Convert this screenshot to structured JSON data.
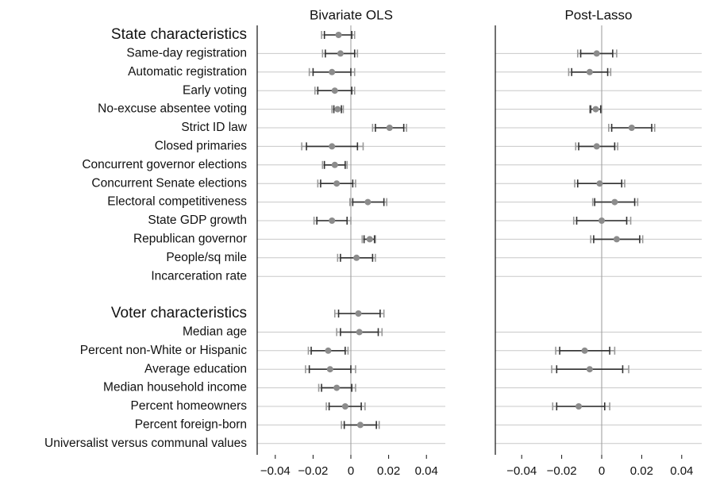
{
  "chart_data": {
    "type": "coefficient-plot",
    "panels": [
      {
        "title": "Bivariate OLS",
        "xlim": [
          -0.05,
          0.05
        ],
        "xticks": [
          -0.04,
          -0.02,
          0,
          0.02,
          0.04
        ],
        "xtick_labels": [
          "−0.04",
          "−0.02",
          "0",
          "0.02",
          "0.04"
        ],
        "estimates": [
          {
            "row": 0,
            "est": -0.0065,
            "ci90": [
              -0.014,
              0.0005
            ],
            "ci95": [
              -0.0155,
              0.002
            ]
          },
          {
            "row": 1,
            "est": -0.0055,
            "ci90": [
              -0.0135,
              0.002
            ],
            "ci95": [
              -0.015,
              0.0035
            ]
          },
          {
            "row": 2,
            "est": -0.01,
            "ci90": [
              -0.02,
              0.0
            ],
            "ci95": [
              -0.022,
              0.002
            ]
          },
          {
            "row": 3,
            "est": -0.0085,
            "ci90": [
              -0.0175,
              0.0005
            ],
            "ci95": [
              -0.019,
              0.002
            ]
          },
          {
            "row": 4,
            "est": -0.007,
            "ci90": [
              -0.009,
              -0.005
            ],
            "ci95": [
              -0.01,
              -0.004
            ]
          },
          {
            "row": 5,
            "est": 0.0205,
            "ci90": [
              0.013,
              0.028
            ],
            "ci95": [
              0.0115,
              0.0295
            ]
          },
          {
            "row": 6,
            "est": -0.01,
            "ci90": [
              -0.0235,
              0.0035
            ],
            "ci95": [
              -0.026,
              0.0065
            ]
          },
          {
            "row": 7,
            "est": -0.0085,
            "ci90": [
              -0.014,
              -0.003
            ],
            "ci95": [
              -0.015,
              -0.002
            ]
          },
          {
            "row": 8,
            "est": -0.0075,
            "ci90": [
              -0.016,
              0.001
            ],
            "ci95": [
              -0.0175,
              0.0025
            ]
          },
          {
            "row": 9,
            "est": 0.009,
            "ci90": [
              0.001,
              0.0175
            ],
            "ci95": [
              -0.0005,
              0.019
            ]
          },
          {
            "row": 10,
            "est": -0.01,
            "ci90": [
              -0.018,
              -0.002
            ],
            "ci95": [
              -0.0195,
              0.0
            ]
          },
          {
            "row": 11,
            "est": 0.01,
            "ci90": [
              0.007,
              0.0125
            ],
            "ci95": [
              0.006,
              0.013
            ]
          },
          {
            "row": 12,
            "est": 0.003,
            "ci90": [
              -0.0055,
              0.0115
            ],
            "ci95": [
              -0.007,
              0.013
            ]
          },
          {
            "row": 15,
            "est": 0.004,
            "ci90": [
              -0.0065,
              0.0155
            ],
            "ci95": [
              -0.0085,
              0.0175
            ]
          },
          {
            "row": 16,
            "est": 0.0045,
            "ci90": [
              -0.0055,
              0.0145
            ],
            "ci95": [
              -0.0075,
              0.0165
            ]
          },
          {
            "row": 17,
            "est": -0.012,
            "ci90": [
              -0.021,
              -0.003
            ],
            "ci95": [
              -0.0225,
              -0.0015
            ]
          },
          {
            "row": 18,
            "est": -0.011,
            "ci90": [
              -0.022,
              0.0
            ],
            "ci95": [
              -0.024,
              0.0025
            ]
          },
          {
            "row": 19,
            "est": -0.0075,
            "ci90": [
              -0.0155,
              0.0005
            ],
            "ci95": [
              -0.017,
              0.0025
            ]
          },
          {
            "row": 20,
            "est": -0.003,
            "ci90": [
              -0.0115,
              0.0055
            ],
            "ci95": [
              -0.013,
              0.0075
            ]
          },
          {
            "row": 21,
            "est": 0.005,
            "ci90": [
              -0.0035,
              0.0135
            ],
            "ci95": [
              -0.005,
              0.015
            ]
          }
        ]
      },
      {
        "title": "Post-Lasso",
        "xlim": [
          -0.05,
          0.05
        ],
        "xticks": [
          -0.04,
          -0.02,
          0,
          0.02,
          0.04
        ],
        "xtick_labels": [
          "−0.04",
          "−0.02",
          "0",
          "0.02",
          "0.04"
        ],
        "estimates": [
          {
            "row": 1,
            "est": -0.0025,
            "ci90": [
              -0.0105,
              0.0055
            ],
            "ci95": [
              -0.012,
              0.0075
            ]
          },
          {
            "row": 2,
            "est": -0.006,
            "ci90": [
              -0.015,
              0.003
            ],
            "ci95": [
              -0.0165,
              0.0045
            ]
          },
          {
            "row": 5,
            "est": 0.015,
            "ci90": [
              0.005,
              0.025
            ],
            "ci95": [
              0.0035,
              0.0265
            ]
          },
          {
            "row": 4,
            "est": -0.003,
            "ci90": [
              -0.0055,
              -0.0005
            ],
            "ci95": [
              -0.006,
              0.0
            ]
          },
          {
            "row": 6,
            "est": -0.0025,
            "ci90": [
              -0.0115,
              0.0065
            ],
            "ci95": [
              -0.013,
              0.008
            ]
          },
          {
            "row": 8,
            "est": -0.001,
            "ci90": [
              -0.012,
              0.01
            ],
            "ci95": [
              -0.0135,
              0.0115
            ]
          },
          {
            "row": 9,
            "est": 0.0065,
            "ci90": [
              -0.0035,
              0.0165
            ],
            "ci95": [
              -0.0045,
              0.018
            ]
          },
          {
            "row": 10,
            "est": 0.0,
            "ci90": [
              -0.0125,
              0.0125
            ],
            "ci95": [
              -0.014,
              0.0145
            ]
          },
          {
            "row": 11,
            "est": 0.0075,
            "ci90": [
              -0.004,
              0.019
            ],
            "ci95": [
              -0.0055,
              0.0205
            ]
          },
          {
            "row": 17,
            "est": -0.0085,
            "ci90": [
              -0.021,
              0.004
            ],
            "ci95": [
              -0.023,
              0.0065
            ]
          },
          {
            "row": 18,
            "est": -0.006,
            "ci90": [
              -0.0225,
              0.0105
            ],
            "ci95": [
              -0.025,
              0.0135
            ]
          },
          {
            "row": 20,
            "est": -0.0115,
            "ci90": [
              -0.0225,
              0.0015
            ],
            "ci95": [
              -0.0245,
              0.004
            ]
          }
        ]
      }
    ],
    "rows": [
      {
        "label": "State characteristics",
        "kind": "group"
      },
      {
        "label": "Same-day registration",
        "kind": "item"
      },
      {
        "label": "Automatic registration",
        "kind": "item"
      },
      {
        "label": "Early voting",
        "kind": "item"
      },
      {
        "label": "No-excuse absentee voting",
        "kind": "item"
      },
      {
        "label": "Strict ID law",
        "kind": "item"
      },
      {
        "label": "Closed primaries",
        "kind": "item"
      },
      {
        "label": "Concurrent governor elections",
        "kind": "item"
      },
      {
        "label": "Concurrent Senate elections",
        "kind": "item"
      },
      {
        "label": "Electoral competitiveness",
        "kind": "item"
      },
      {
        "label": "State GDP growth",
        "kind": "item"
      },
      {
        "label": "Republican governor",
        "kind": "item"
      },
      {
        "label": "People/sq mile",
        "kind": "item"
      },
      {
        "label": "Incarceration rate",
        "kind": "item"
      },
      {
        "label": "",
        "kind": "spacer"
      },
      {
        "label": "Voter characteristics",
        "kind": "group"
      },
      {
        "label": "Median age",
        "kind": "item"
      },
      {
        "label": "Percent non-White or Hispanic",
        "kind": "item"
      },
      {
        "label": "Average education",
        "kind": "item"
      },
      {
        "label": "Median household income",
        "kind": "item"
      },
      {
        "label": "Percent homeowners",
        "kind": "item"
      },
      {
        "label": "Percent foreign-born",
        "kind": "item"
      },
      {
        "label": "Universalist versus communal values",
        "kind": "item"
      }
    ],
    "legend": "none",
    "gridlines": "horizontal",
    "zero_line": true,
    "colors": {
      "grid": "#c8c8c8",
      "axis": "#111111",
      "zero": "#9a9a9a",
      "ci90": "#333333",
      "ci95": "#999999",
      "point": "#8c8c8c",
      "text": "#111111"
    }
  }
}
